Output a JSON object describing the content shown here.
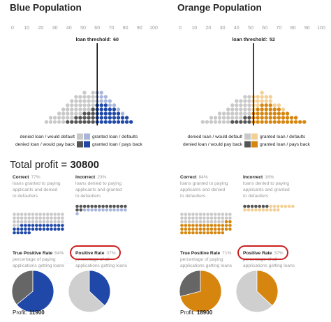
{
  "total_profit": {
    "label": "Total profit =",
    "value": 30800
  },
  "panels": [
    {
      "title": "Blue Population",
      "xlim": [
        0,
        100
      ],
      "xticks": [
        0,
        10,
        20,
        30,
        40,
        50,
        60,
        70,
        80,
        90,
        100
      ],
      "threshold_label": "loan threshold:",
      "threshold": 60,
      "scores": [
        24,
        27,
        30,
        33,
        36,
        39,
        42,
        45,
        48,
        51,
        54,
        57,
        60,
        63,
        66,
        69,
        72,
        75,
        78,
        81,
        84
      ],
      "defaults": [
        1,
        2,
        2,
        3,
        4,
        4,
        5,
        5,
        5,
        5,
        4,
        4,
        3,
        3,
        2,
        2,
        1,
        1,
        1,
        0,
        0
      ],
      "pays_back": [
        0,
        0,
        0,
        0,
        0,
        1,
        1,
        2,
        2,
        3,
        3,
        4,
        5,
        5,
        5,
        4,
        4,
        3,
        2,
        2,
        1
      ],
      "colors": {
        "denied_default": "#c9c9c9",
        "denied_pays": "#555555",
        "granted_default": "#a9b6dc",
        "granted_pays": "#1f48a8"
      },
      "legend": {
        "denied_default": "denied loan / would default",
        "granted_default": "granted loan / defaults",
        "denied_pays": "denied loan / would pay back",
        "granted_pays": "granted loan / pays back"
      },
      "correct": {
        "label": "Correct",
        "percent": "77%",
        "description": [
          "loans granted to paying",
          "applicants and denied",
          "to defaulters"
        ]
      },
      "incorrect": {
        "label": "Incorrect",
        "percent": "23%",
        "description": [
          "loans denied to paying",
          "applicants and granted",
          "to defaulters"
        ]
      },
      "tpr": {
        "label": "True Positive Rate",
        "value": 64,
        "value_label": "64%",
        "description": [
          "percentage of paying",
          "applications getting loans"
        ]
      },
      "pr": {
        "label": "Positive Rate",
        "value": 37,
        "value_label": "37%",
        "description": [
          "percentage of all",
          "applications getting loans"
        ]
      },
      "profit": {
        "label": "Profit:",
        "value": 11900
      }
    },
    {
      "title": "Orange Population",
      "xlim": [
        0,
        100
      ],
      "xticks": [
        0,
        10,
        20,
        30,
        40,
        50,
        60,
        70,
        80,
        90,
        100
      ],
      "threshold_label": "loan threshold:",
      "threshold": 52,
      "scores": [
        16,
        19,
        22,
        25,
        28,
        31,
        34,
        37,
        40,
        43,
        46,
        49,
        52,
        55,
        58,
        61,
        64,
        67,
        70,
        73,
        76,
        79,
        82,
        85,
        88
      ],
      "defaults": [
        1,
        1,
        2,
        2,
        3,
        3,
        4,
        4,
        5,
        5,
        5,
        5,
        4,
        3,
        3,
        2,
        2,
        1,
        1,
        1,
        0,
        0,
        0,
        0,
        0
      ],
      "pays_back": [
        0,
        0,
        0,
        0,
        0,
        0,
        0,
        1,
        1,
        1,
        2,
        2,
        3,
        4,
        5,
        5,
        5,
        4,
        4,
        3,
        3,
        2,
        2,
        1,
        1
      ],
      "colors": {
        "denied_default": "#c9c9c9",
        "denied_pays": "#555555",
        "granted_default": "#f3cf94",
        "granted_pays": "#d6860f"
      },
      "legend": {
        "denied_default": "denied loan / would default",
        "granted_default": "granted loan / defaults",
        "denied_pays": "denied loan / would pay back",
        "granted_pays": "granted loan / pays back"
      },
      "correct": {
        "label": "Correct",
        "percent": "84%",
        "description": [
          "loans granted to paying",
          "applicants and denied",
          "to defaulters"
        ]
      },
      "incorrect": {
        "label": "Incorrect",
        "percent": "16%",
        "description": [
          "loans denied to paying",
          "applicants and granted",
          "to defaulters"
        ]
      },
      "tpr": {
        "label": "True Positive Rate",
        "value": 71,
        "value_label": "71%",
        "description": [
          "percentage of paying",
          "applications getting loans"
        ]
      },
      "pr": {
        "label": "Positive Rate",
        "value": 37,
        "value_label": "37%",
        "description": [
          "percentage of all",
          "applications getting loans"
        ]
      },
      "profit": {
        "label": "Profit:",
        "value": 18900
      }
    }
  ]
}
